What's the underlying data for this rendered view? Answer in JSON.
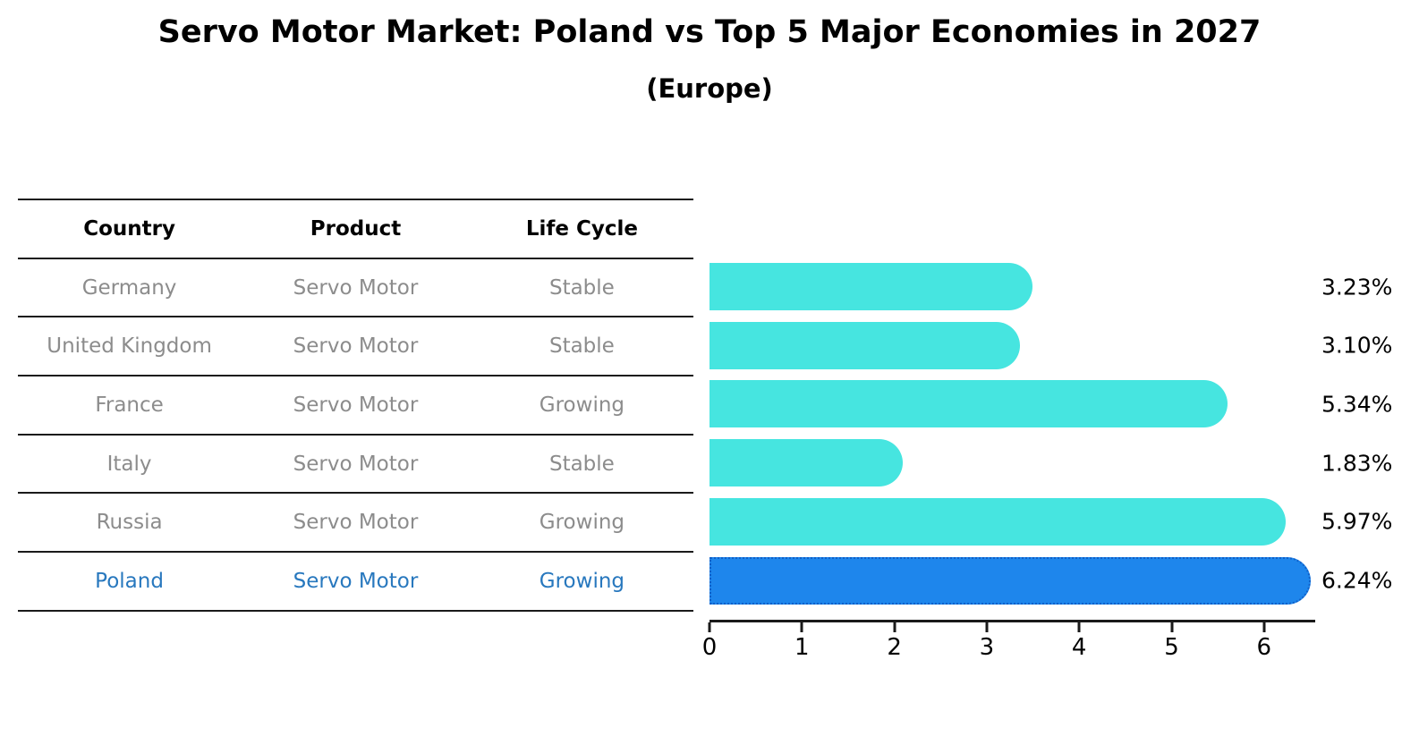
{
  "title": "Servo Motor Market: Poland vs Top 5 Major Economies in 2027",
  "subtitle": "(Europe)",
  "table": {
    "headers": [
      "Country",
      "Product",
      "Life Cycle"
    ],
    "rows": [
      {
        "country": "Germany",
        "product": "Servo Motor",
        "life_cycle": "Stable",
        "highlight": false
      },
      {
        "country": "United Kingdom",
        "product": "Servo Motor",
        "life_cycle": "Stable",
        "highlight": false
      },
      {
        "country": "France",
        "product": "Servo Motor",
        "life_cycle": "Growing",
        "highlight": false
      },
      {
        "country": "Italy",
        "product": "Servo Motor",
        "life_cycle": "Stable",
        "highlight": false
      },
      {
        "country": "Russia",
        "product": "Servo Motor",
        "life_cycle": "Growing",
        "highlight": false
      },
      {
        "country": "Poland",
        "product": "Servo Motor",
        "life_cycle": "Growing",
        "highlight": true
      }
    ]
  },
  "chart_data": {
    "type": "bar",
    "orientation": "horizontal",
    "title": "Servo Motor Market: Poland vs Top 5 Major Economies in 2027",
    "subtitle": "(Europe)",
    "categories": [
      "Germany",
      "United Kingdom",
      "France",
      "Italy",
      "Russia",
      "Poland"
    ],
    "values": [
      3.23,
      3.1,
      5.34,
      1.83,
      5.97,
      6.24
    ],
    "value_labels": [
      "3.23%",
      "3.10%",
      "5.34%",
      "1.83%",
      "5.97%",
      "6.24%"
    ],
    "xlabel": "",
    "ylabel": "",
    "xlim": [
      0,
      6.55
    ],
    "xticks": [
      0,
      1,
      2,
      3,
      4,
      5,
      6
    ],
    "grid": false,
    "legend": false,
    "highlight_index": 5,
    "highlight_category": "Poland"
  },
  "colors": {
    "bar_default": "#46E5E0",
    "bar_highlight": "#1E86EC",
    "highlight_border": "#1060C8",
    "highlight_text": "#2878BE",
    "table_text": "#8C8C8C"
  }
}
